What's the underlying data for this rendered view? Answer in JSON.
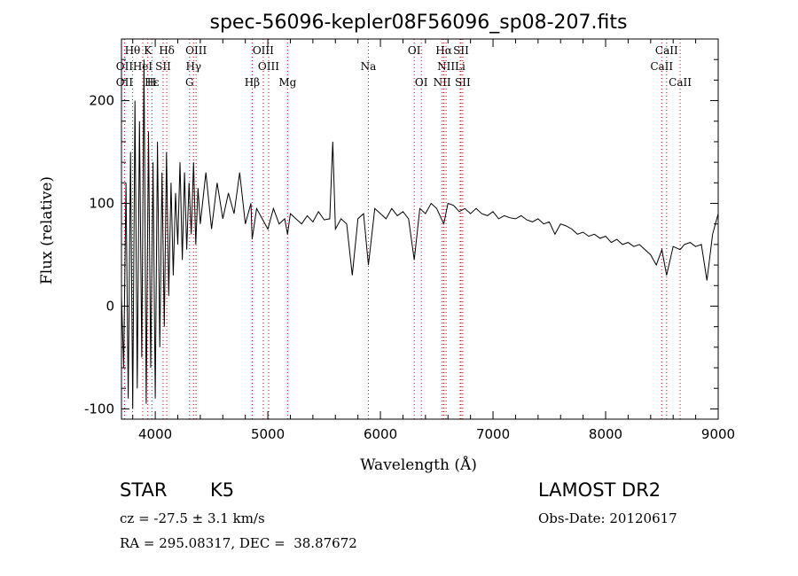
{
  "chart_data": {
    "type": "line",
    "title": "spec-56096-kepler08F56096_sp08-207.fits",
    "xlabel": "Wavelength (Å)",
    "ylabel": "Flux (relative)",
    "xlim": [
      3700,
      9000
    ],
    "ylim": [
      -110,
      260
    ],
    "xticks": [
      4000,
      5000,
      6000,
      7000,
      8000,
      9000
    ],
    "yticks": [
      -100,
      0,
      100,
      200
    ],
    "grid": false,
    "series": [
      {
        "x": [
          3700,
          3720,
          3740,
          3760,
          3780,
          3800,
          3820,
          3840,
          3860,
          3880,
          3900,
          3920,
          3940,
          3960,
          3980,
          4000,
          4020,
          4040,
          4060,
          4080,
          4100,
          4120,
          4140,
          4160,
          4180,
          4200,
          4220,
          4240,
          4260,
          4280,
          4300,
          4320,
          4340,
          4360,
          4380,
          4400,
          4450,
          4500,
          4550,
          4600,
          4650,
          4700,
          4750,
          4800,
          4850,
          4861,
          4900,
          4950,
          5000,
          5050,
          5100,
          5150,
          5175,
          5200,
          5250,
          5300,
          5350,
          5400,
          5450,
          5500,
          5550,
          5577,
          5600,
          5650,
          5700,
          5750,
          5800,
          5850,
          5893,
          5950,
          6000,
          6050,
          6100,
          6150,
          6200,
          6250,
          6300,
          6350,
          6400,
          6450,
          6500,
          6563,
          6600,
          6650,
          6700,
          6750,
          6800,
          6850,
          6900,
          6950,
          7000,
          7050,
          7100,
          7150,
          7200,
          7250,
          7300,
          7350,
          7400,
          7450,
          7500,
          7550,
          7600,
          7650,
          7700,
          7750,
          7800,
          7850,
          7900,
          7950,
          8000,
          8050,
          8100,
          8150,
          8200,
          8250,
          8300,
          8350,
          8400,
          8450,
          8500,
          8542,
          8600,
          8662,
          8700,
          8750,
          8800,
          8850,
          8900,
          8950,
          9000
        ],
        "y": [
          10,
          -60,
          120,
          -90,
          150,
          -100,
          200,
          -80,
          180,
          -50,
          240,
          -95,
          170,
          -60,
          140,
          -90,
          160,
          -40,
          130,
          -20,
          150,
          10,
          120,
          30,
          110,
          60,
          140,
          45,
          130,
          55,
          120,
          70,
          140,
          60,
          115,
          80,
          130,
          75,
          120,
          85,
          110,
          90,
          130,
          80,
          100,
          65,
          95,
          85,
          75,
          95,
          80,
          85,
          70,
          90,
          85,
          80,
          88,
          82,
          92,
          84,
          85,
          160,
          75,
          85,
          80,
          30,
          85,
          90,
          40,
          95,
          90,
          85,
          95,
          88,
          92,
          85,
          45,
          95,
          90,
          100,
          95,
          80,
          100,
          98,
          92,
          95,
          90,
          95,
          90,
          88,
          92,
          85,
          88,
          86,
          85,
          88,
          84,
          82,
          85,
          80,
          82,
          70,
          80,
          78,
          75,
          70,
          72,
          68,
          70,
          66,
          68,
          62,
          65,
          60,
          62,
          58,
          60,
          55,
          50,
          40,
          55,
          30,
          58,
          55,
          60,
          62,
          58,
          60,
          25,
          70,
          90
        ]
      }
    ],
    "lines": [
      {
        "name": "Hδ",
        "x": 4102,
        "row": 1
      },
      {
        "name": "K",
        "x": 3934,
        "row": 1
      },
      {
        "name": "Hθ",
        "x": 3798,
        "row": 1
      },
      {
        "name": "OIII",
        "x": 4363,
        "row": 1
      },
      {
        "name": "OIII",
        "x": 4959,
        "row": 1
      },
      {
        "name": "OI",
        "x": 6300,
        "row": 1
      },
      {
        "name": "Hα",
        "x": 6563,
        "row": 1
      },
      {
        "name": "SII",
        "x": 6716,
        "row": 1
      },
      {
        "name": "CaII",
        "x": 8542,
        "row": 1
      },
      {
        "name": "OII",
        "x": 3727,
        "row": 2
      },
      {
        "name": "HeI",
        "x": 3889,
        "row": 2
      },
      {
        "name": "SII",
        "x": 4070,
        "row": 2
      },
      {
        "name": "Hγ",
        "x": 4340,
        "row": 2
      },
      {
        "name": "OIII",
        "x": 5007,
        "row": 2
      },
      {
        "name": "Na",
        "x": 5893,
        "row": 2
      },
      {
        "name": "NII",
        "x": 6583,
        "row": 2
      },
      {
        "name": "Li",
        "x": 6708,
        "row": 2
      },
      {
        "name": "CaII",
        "x": 8498,
        "row": 2
      },
      {
        "name": "OII",
        "x": 3727,
        "row": 3
      },
      {
        "name": "Hε",
        "x": 3970,
        "row": 3
      },
      {
        "name": "H",
        "x": 3968,
        "row": 3
      },
      {
        "name": "G",
        "x": 4305,
        "row": 3
      },
      {
        "name": "Hβ",
        "x": 4861,
        "row": 3
      },
      {
        "name": "Mg",
        "x": 5175,
        "row": 3
      },
      {
        "name": "OI",
        "x": 6363,
        "row": 3
      },
      {
        "name": "NII",
        "x": 6548,
        "row": 3
      },
      {
        "name": "SII",
        "x": 6731,
        "row": 3
      },
      {
        "name": "CaII",
        "x": 8662,
        "row": 3
      }
    ]
  },
  "info": {
    "obj_type": "STAR",
    "subclass": "K5",
    "survey": "LAMOST DR2",
    "cz": "cz = -27.5 ± 3.1 km/s",
    "obs_date": "Obs-Date: 20120617",
    "radec": "RA = 295.08317, DEC =  38.87672"
  },
  "colors": {
    "spectrum": "#000000",
    "line_markers": "#cc0000"
  }
}
